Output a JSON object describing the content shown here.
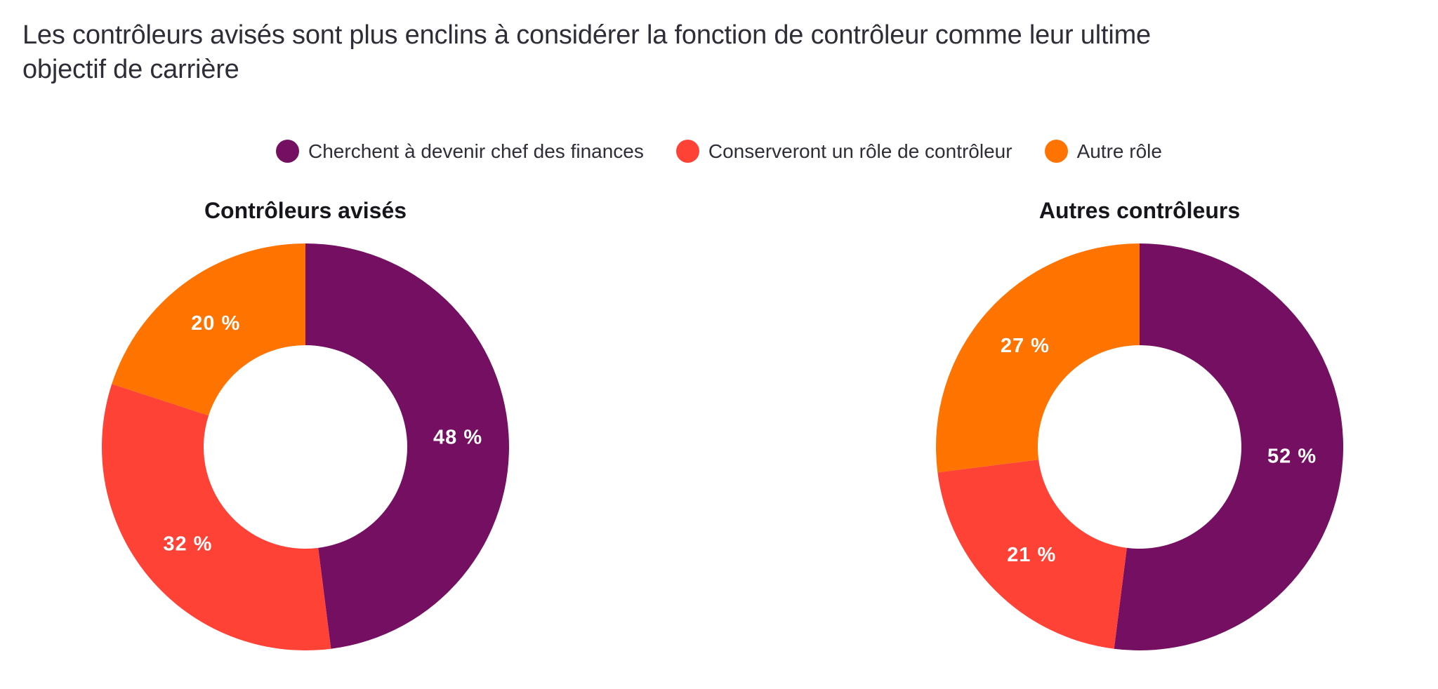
{
  "page": {
    "background_color": "#ffffff",
    "text_color": "#2e2e38"
  },
  "header": {
    "title_line1": "Les contrôleurs avisés sont plus enclins à considérer la fonction de contrôleur comme leur ultime",
    "title_line2": "objectif de carrière"
  },
  "legend": {
    "position": "top-center",
    "items": [
      {
        "label": "Cherchent à devenir chef des finances",
        "color": "#740F62"
      },
      {
        "label": "Conserveront un rôle de contrôleur",
        "color": "#FF4136"
      },
      {
        "label": "Autre rôle",
        "color": "#FF7300"
      }
    ]
  },
  "chart_data": [
    {
      "type": "pie",
      "variant": "donut",
      "title": "Contrôleurs avisés",
      "categories": [
        "Cherchent à devenir chef des finances",
        "Conserveront un rôle de contrôleur",
        "Autre rôle"
      ],
      "values": [
        48,
        32,
        20
      ],
      "value_labels": [
        "48 %",
        "32 %",
        "20 %"
      ],
      "colors": [
        "#740F62",
        "#FF4136",
        "#FF7300"
      ],
      "start_angle_deg": 0,
      "direction": "clockwise",
      "inner_radius_ratio": 0.5,
      "value_label_color": "#ffffff",
      "grid": false,
      "legend_position": "top-shared"
    },
    {
      "type": "pie",
      "variant": "donut",
      "title": "Autres contrôleurs",
      "categories": [
        "Cherchent à devenir chef des finances",
        "Conserveront un rôle de contrôleur",
        "Autre rôle"
      ],
      "values": [
        52,
        21,
        27
      ],
      "value_labels": [
        "52 %",
        "21 %",
        "27 %"
      ],
      "colors": [
        "#740F62",
        "#FF4136",
        "#FF7300"
      ],
      "start_angle_deg": 0,
      "direction": "clockwise",
      "inner_radius_ratio": 0.5,
      "value_label_color": "#ffffff",
      "grid": false,
      "legend_position": "top-shared"
    }
  ]
}
